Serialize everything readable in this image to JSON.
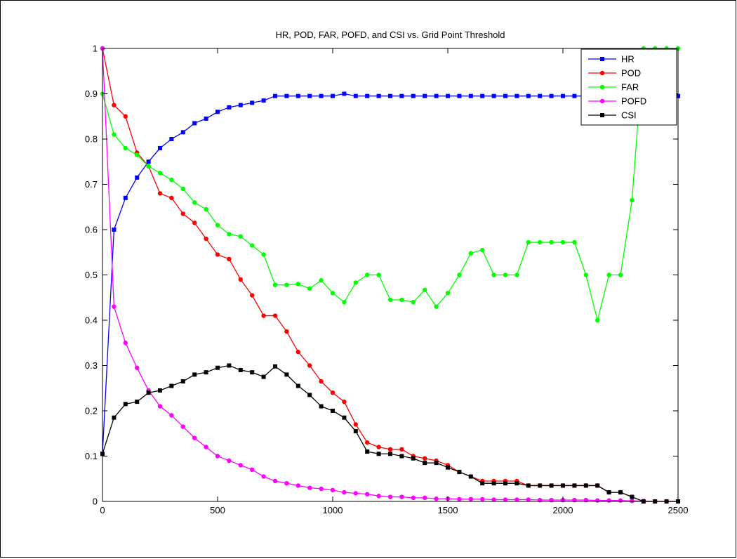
{
  "chart_data": {
    "type": "line",
    "title": "HR, POD, FAR, POFD, and CSI vs. Grid Point Threshold",
    "xlabel": "",
    "ylabel": "",
    "xlim": [
      0,
      2500
    ],
    "ylim": [
      0,
      1
    ],
    "xticks": [
      0,
      500,
      1000,
      1500,
      2000,
      2500
    ],
    "yticks": [
      0,
      0.1,
      0.2,
      0.3,
      0.4,
      0.5,
      0.6,
      0.7,
      0.8,
      0.9,
      1
    ],
    "grid": false,
    "legend_position": "top-right",
    "x": [
      0,
      50,
      100,
      150,
      200,
      250,
      300,
      350,
      400,
      450,
      500,
      550,
      600,
      650,
      700,
      750,
      800,
      850,
      900,
      950,
      1000,
      1050,
      1100,
      1150,
      1200,
      1250,
      1300,
      1350,
      1400,
      1450,
      1500,
      1550,
      1600,
      1650,
      1700,
      1750,
      1800,
      1850,
      1900,
      1950,
      2000,
      2050,
      2100,
      2150,
      2200,
      2250,
      2300,
      2350,
      2400,
      2450,
      2500
    ],
    "series": [
      {
        "name": "HR",
        "color": "#0000ff",
        "marker": "square",
        "values": [
          0.105,
          0.6,
          0.67,
          0.715,
          0.75,
          0.78,
          0.8,
          0.815,
          0.835,
          0.845,
          0.86,
          0.87,
          0.875,
          0.88,
          0.885,
          0.895,
          0.895,
          0.895,
          0.895,
          0.895,
          0.895,
          0.9,
          0.895,
          0.895,
          0.895,
          0.895,
          0.895,
          0.895,
          0.895,
          0.895,
          0.895,
          0.895,
          0.895,
          0.895,
          0.895,
          0.895,
          0.895,
          0.895,
          0.895,
          0.895,
          0.895,
          0.895,
          0.895,
          0.895,
          0.895,
          0.895,
          0.895,
          0.895,
          0.895,
          0.895,
          0.895
        ]
      },
      {
        "name": "POD",
        "color": "#ff0000",
        "marker": "circle",
        "values": [
          1.0,
          0.875,
          0.85,
          0.77,
          0.74,
          0.68,
          0.67,
          0.635,
          0.615,
          0.58,
          0.545,
          0.535,
          0.49,
          0.455,
          0.41,
          0.41,
          0.375,
          0.33,
          0.3,
          0.265,
          0.24,
          0.22,
          0.17,
          0.13,
          0.12,
          0.115,
          0.115,
          0.1,
          0.095,
          0.09,
          0.08,
          0.065,
          0.055,
          0.045,
          0.045,
          0.045,
          0.045,
          0.035,
          0.035,
          0.035,
          0.035,
          0.035,
          0.035,
          0.035,
          0.02,
          0.02,
          0.01,
          0.0,
          0.0,
          0.0,
          0.0
        ]
      },
      {
        "name": "FAR",
        "color": "#00ff00",
        "marker": "circle",
        "values": [
          0.9,
          0.81,
          0.78,
          0.765,
          0.74,
          0.725,
          0.71,
          0.69,
          0.66,
          0.645,
          0.61,
          0.59,
          0.585,
          0.565,
          0.545,
          0.478,
          0.478,
          0.48,
          0.47,
          0.488,
          0.46,
          0.44,
          0.483,
          0.5,
          0.5,
          0.445,
          0.445,
          0.44,
          0.467,
          0.43,
          0.46,
          0.5,
          0.548,
          0.555,
          0.5,
          0.5,
          0.5,
          0.572,
          0.572,
          0.572,
          0.572,
          0.572,
          0.5,
          0.4,
          0.5,
          0.5,
          0.665,
          1.0,
          1.0,
          1.0,
          1.0
        ]
      },
      {
        "name": "POFD",
        "color": "#ff00ff",
        "marker": "circle",
        "values": [
          1.0,
          0.43,
          0.35,
          0.295,
          0.245,
          0.21,
          0.19,
          0.165,
          0.14,
          0.12,
          0.1,
          0.09,
          0.08,
          0.07,
          0.055,
          0.045,
          0.04,
          0.035,
          0.03,
          0.028,
          0.025,
          0.02,
          0.018,
          0.016,
          0.012,
          0.01,
          0.01,
          0.008,
          0.008,
          0.006,
          0.006,
          0.005,
          0.005,
          0.005,
          0.004,
          0.004,
          0.004,
          0.004,
          0.003,
          0.003,
          0.003,
          0.003,
          0.003,
          0.002,
          0.002,
          0.002,
          0.001,
          0.001,
          0.0,
          0.0,
          0.0
        ]
      },
      {
        "name": "CSI",
        "color": "#000000",
        "marker": "square",
        "values": [
          0.105,
          0.185,
          0.215,
          0.22,
          0.24,
          0.245,
          0.255,
          0.265,
          0.28,
          0.285,
          0.295,
          0.3,
          0.29,
          0.285,
          0.275,
          0.298,
          0.28,
          0.255,
          0.235,
          0.21,
          0.2,
          0.185,
          0.155,
          0.11,
          0.105,
          0.105,
          0.1,
          0.095,
          0.085,
          0.085,
          0.075,
          0.065,
          0.055,
          0.04,
          0.04,
          0.04,
          0.04,
          0.035,
          0.035,
          0.035,
          0.035,
          0.035,
          0.035,
          0.035,
          0.02,
          0.02,
          0.01,
          0.0,
          0.0,
          0.0,
          0.0
        ]
      }
    ]
  }
}
